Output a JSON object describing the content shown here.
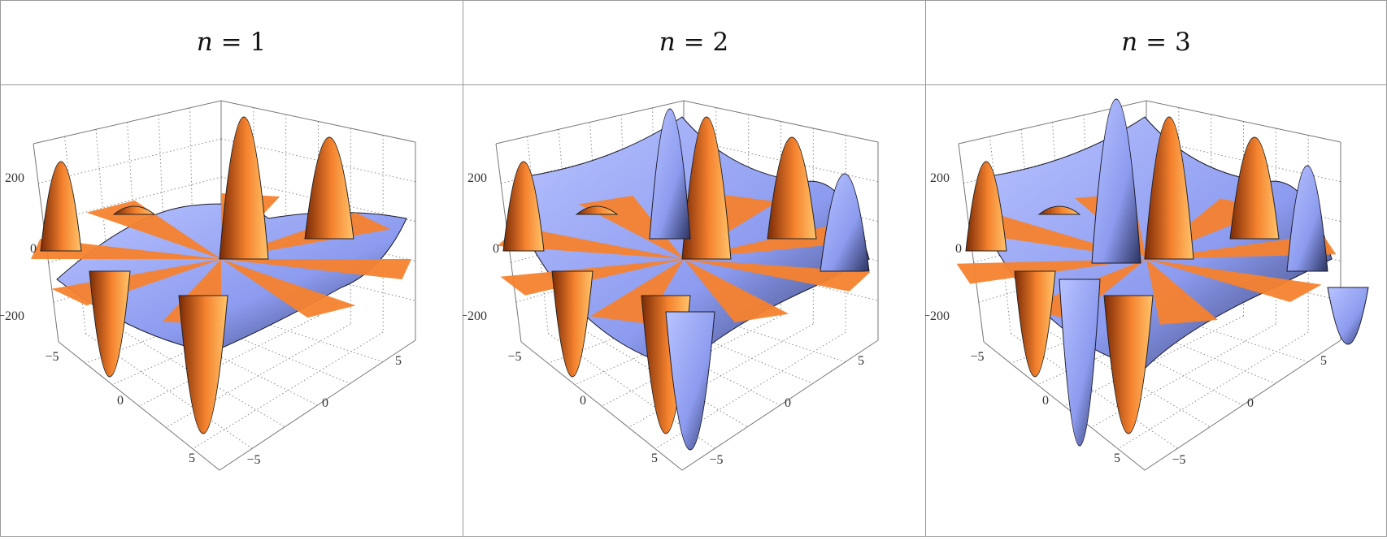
{
  "panels": [
    {
      "label_var": "n",
      "label_eq": " = ",
      "label_val": "1",
      "z_ticks": [
        "200",
        "0",
        "−200"
      ],
      "left_ticks": [
        "−5",
        "0",
        "5"
      ],
      "right_ticks": [
        "−5",
        "0",
        "5"
      ]
    },
    {
      "label_var": "n",
      "label_eq": " = ",
      "label_val": "2",
      "z_ticks": [
        "200",
        "0",
        "−200"
      ],
      "left_ticks": [
        "−5",
        "0",
        "5"
      ],
      "right_ticks": [
        "−5",
        "0",
        "5"
      ]
    },
    {
      "label_var": "n",
      "label_eq": " = ",
      "label_val": "3",
      "z_ticks": [
        "200",
        "0",
        "−200"
      ],
      "left_ticks": [
        "−5",
        "0",
        "5"
      ],
      "right_ticks": [
        "−5",
        "0",
        "5"
      ]
    }
  ],
  "colors": {
    "orange": "#f5822e",
    "orange_dark": "#7a2a05",
    "blue": "#8c9bef",
    "blue_dark": "#2b3360",
    "grid_line": "#888888",
    "border": "#999999"
  }
}
